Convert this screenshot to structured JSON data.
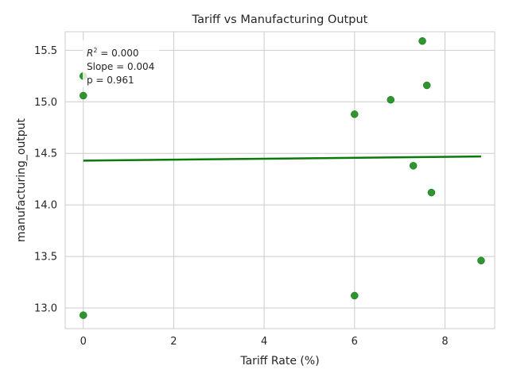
{
  "chart_data": {
    "type": "scatter",
    "title": "Tariff vs Manufacturing Output",
    "xlabel": "Tariff Rate (%)",
    "ylabel": "manufacturing_output",
    "xlim": [
      -0.4,
      9.1
    ],
    "ylim": [
      12.8,
      15.68
    ],
    "xticks": [
      0,
      2,
      4,
      6,
      8
    ],
    "yticks": [
      13.0,
      13.5,
      14.0,
      14.5,
      15.0,
      15.5
    ],
    "ytick_labels": [
      "13.0",
      "13.5",
      "14.0",
      "14.5",
      "15.0",
      "15.5"
    ],
    "grid": true,
    "point_color": "#1a8a1a",
    "line_color": "#0a7a0a",
    "points": [
      {
        "x": 0.0,
        "y": 15.25
      },
      {
        "x": 0.0,
        "y": 15.06
      },
      {
        "x": 0.0,
        "y": 12.93
      },
      {
        "x": 6.0,
        "y": 14.88
      },
      {
        "x": 6.0,
        "y": 13.12
      },
      {
        "x": 6.8,
        "y": 15.02
      },
      {
        "x": 7.3,
        "y": 14.38
      },
      {
        "x": 7.5,
        "y": 15.59
      },
      {
        "x": 7.6,
        "y": 15.16
      },
      {
        "x": 7.7,
        "y": 14.12
      },
      {
        "x": 8.8,
        "y": 13.46
      }
    ],
    "regression": {
      "x": [
        0.0,
        8.8
      ],
      "y": [
        14.43,
        14.47
      ]
    },
    "stats": {
      "r2_label": "R",
      "r2_sup": "2",
      "r2_value": " = 0.000",
      "slope": "Slope = 0.004",
      "p": "p = 0.961"
    }
  }
}
